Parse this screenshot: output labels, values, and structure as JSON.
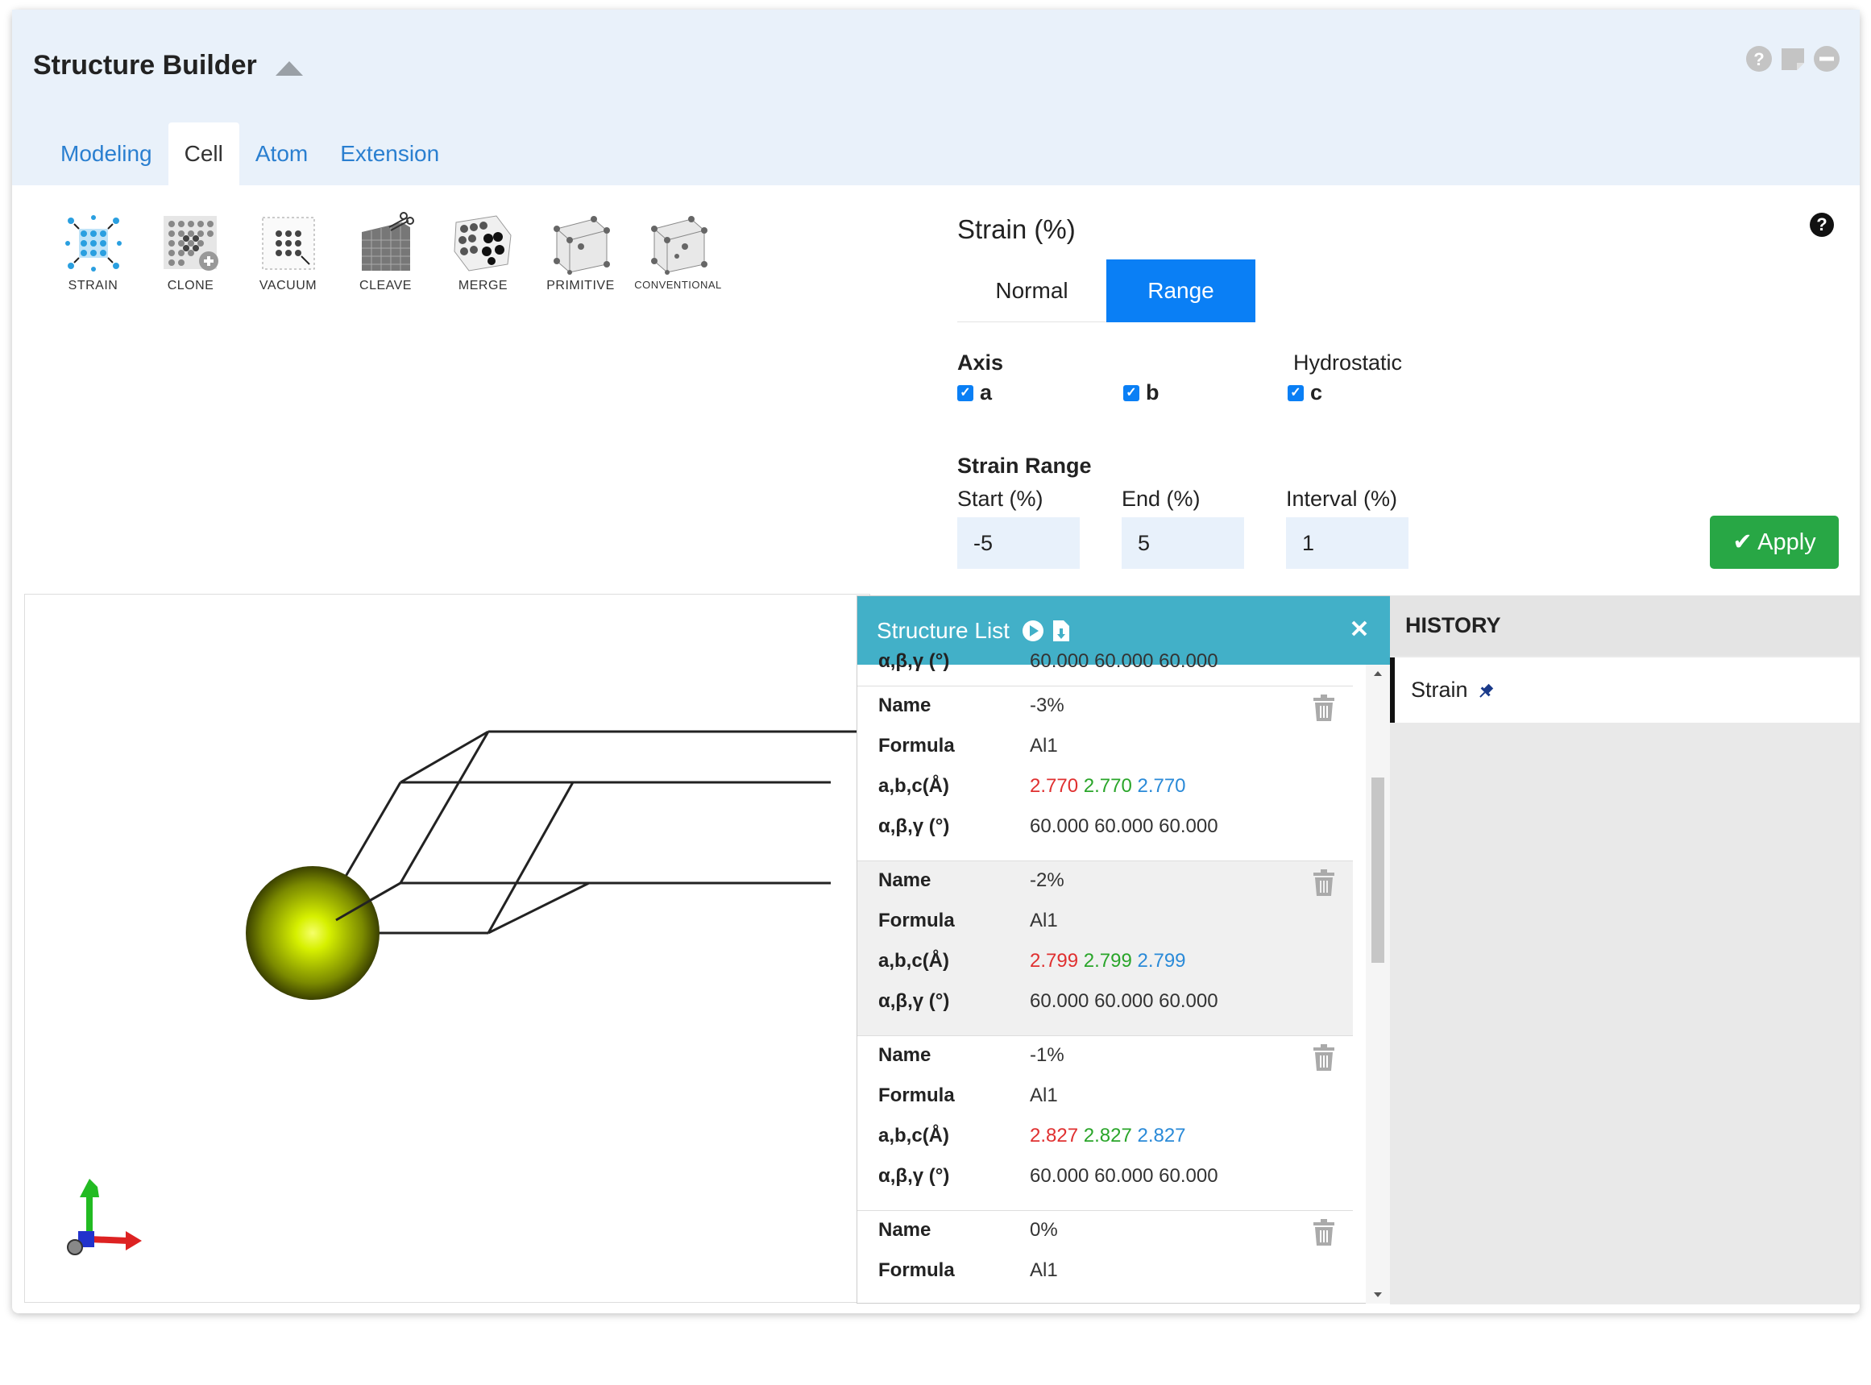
{
  "app": {
    "title": "Structure Builder"
  },
  "tabs": [
    {
      "label": "Modeling"
    },
    {
      "label": "Cell"
    },
    {
      "label": "Atom"
    },
    {
      "label": "Extension"
    }
  ],
  "active_tab": "Cell",
  "tools": [
    {
      "label": "STRAIN",
      "icon": "strain-icon"
    },
    {
      "label": "CLONE",
      "icon": "clone-icon"
    },
    {
      "label": "VACUUM",
      "icon": "vacuum-icon"
    },
    {
      "label": "CLEAVE",
      "icon": "cleave-icon"
    },
    {
      "label": "MERGE",
      "icon": "merge-icon"
    },
    {
      "label": "PRIMITIVE",
      "icon": "primitive-icon"
    },
    {
      "label": "CONVENTIONAL",
      "icon": "conventional-icon"
    }
  ],
  "strain": {
    "title": "Strain (%)",
    "modes": [
      "Normal",
      "Range"
    ],
    "active_mode": "Range",
    "axis_label": "Axis",
    "hydrostatic_label": "Hydrostatic",
    "axes": [
      {
        "label": "a",
        "checked": true
      },
      {
        "label": "b",
        "checked": true
      },
      {
        "label": "c",
        "checked": true
      }
    ],
    "range_label": "Strain Range",
    "start_label": "Start (%)",
    "end_label": "End (%)",
    "interval_label": "Interval (%)",
    "start_value": "-5",
    "end_value": "5",
    "interval_value": "1",
    "apply_label": "Apply"
  },
  "structure_list": {
    "title": "Structure List",
    "labels": {
      "name": "Name",
      "formula": "Formula",
      "abc": "a,b,c(Å)",
      "angles": "α,β,γ (°)"
    },
    "entries": [
      {
        "name": "-3%",
        "formula": "Al1",
        "a": "2.770",
        "b": "2.770",
        "c": "2.770",
        "angles": "60.000 60.000 60.000"
      },
      {
        "name": "-2%",
        "formula": "Al1",
        "a": "2.799",
        "b": "2.799",
        "c": "2.799",
        "angles": "60.000 60.000 60.000"
      },
      {
        "name": "-1%",
        "formula": "Al1",
        "a": "2.827",
        "b": "2.827",
        "c": "2.827",
        "angles": "60.000 60.000 60.000"
      },
      {
        "name": "0%",
        "formula": "Al1"
      }
    ],
    "partial_top_angles": "60.000 60.000 60.000"
  },
  "history": {
    "title": "HISTORY",
    "items": [
      {
        "label": "Strain"
      }
    ]
  },
  "colors": {
    "accent": "#0a7ff5",
    "apply": "#28a745",
    "list_header": "#42b0c8",
    "a": "#e03030",
    "b": "#2aa52a",
    "c": "#2a8ad8"
  }
}
